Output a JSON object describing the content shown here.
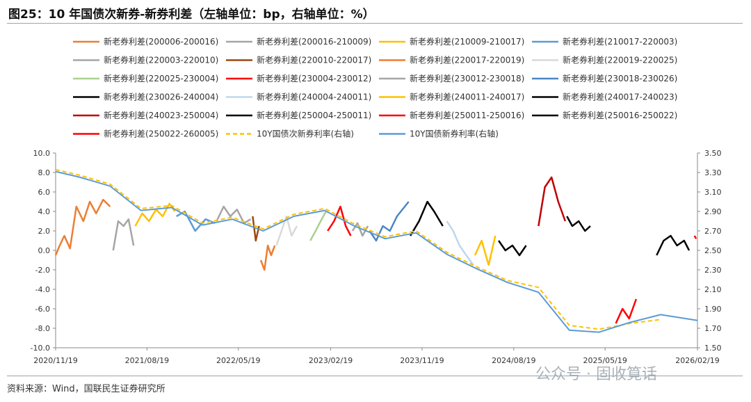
{
  "title": "图25：10 年国债次新券-新券利差（左轴单位：bp，右轴单位：%）",
  "source": "资料来源：Wind，国联民生证券研究所",
  "watermark": "公众号 · 固收筧话",
  "chart_data": {
    "type": "line",
    "xlabel": "",
    "ylabel_left": "",
    "ylabel_right": "",
    "ylim_left": [
      -10,
      10
    ],
    "ylim_right": [
      1.5,
      3.5
    ],
    "x_ticks": [
      "2020/11/19",
      "2021/08/19",
      "2022/05/19",
      "2023/02/19",
      "2023/11/19",
      "2024/08/19",
      "2025/05/19",
      "2026/02/19"
    ],
    "y_ticks_left": [
      "10.0",
      "8.0",
      "6.0",
      "4.0",
      "2.0",
      "0.0",
      "-2.0",
      "-4.0",
      "-6.0",
      "-8.0",
      "-10.0"
    ],
    "y_ticks_right": [
      "3.50",
      "3.30",
      "3.10",
      "2.90",
      "2.70",
      "2.50",
      "2.30",
      "2.10",
      "1.90",
      "1.70",
      "1.50"
    ],
    "grid": false,
    "legend_position": "top",
    "series": [
      {
        "name": "新老券利差(200006-200016)",
        "color": "#ed7d31",
        "style": "solid",
        "axis": "left",
        "x": [
          "2020/11/19",
          "2020/12/01",
          "2020/12/15",
          "2021/01/01",
          "2021/01/20",
          "2021/02/10",
          "2021/03/01",
          "2021/03/20",
          "2021/04/10",
          "2021/05/01"
        ],
        "y": [
          -0.5,
          0.5,
          1.5,
          0.2,
          4.5,
          3.0,
          5.0,
          3.8,
          5.2,
          4.5
        ]
      },
      {
        "name": "新老券利差(200016-210009)",
        "color": "#a5a5a5",
        "style": "solid",
        "axis": "left",
        "x": [
          "2021/05/10",
          "2021/05/25",
          "2021/06/10",
          "2021/06/25",
          "2021/07/10"
        ],
        "y": [
          0.0,
          3.0,
          2.5,
          3.2,
          0.5
        ]
      },
      {
        "name": "新老券利差(210009-210017)",
        "color": "#ffc000",
        "style": "solid",
        "axis": "left",
        "x": [
          "2021/07/15",
          "2021/08/05",
          "2021/08/25",
          "2021/09/15",
          "2021/10/05",
          "2021/10/25",
          "2021/11/10"
        ],
        "y": [
          2.5,
          3.8,
          3.0,
          4.2,
          3.5,
          4.8,
          4.0
        ]
      },
      {
        "name": "新老券利差(210017-220003)",
        "color": "#5b9bd5",
        "style": "solid",
        "axis": "left",
        "x": [
          "2021/11/15",
          "2021/12/10",
          "2022/01/10",
          "2022/02/10",
          "2022/03/10"
        ],
        "y": [
          3.5,
          4.0,
          2.0,
          3.2,
          2.8
        ]
      },
      {
        "name": "新老券利差(220003-220010)",
        "color": "#a5a5a5",
        "style": "solid",
        "axis": "left",
        "x": [
          "2022/03/15",
          "2022/04/05",
          "2022/04/25",
          "2022/05/15",
          "2022/06/05",
          "2022/06/25"
        ],
        "y": [
          3.0,
          4.5,
          3.5,
          4.2,
          2.8,
          3.2
        ]
      },
      {
        "name": "新老券利差(220010-220017)",
        "color": "#9e480e",
        "style": "solid",
        "axis": "left",
        "x": [
          "2022/07/01",
          "2022/07/10",
          "2022/07/20"
        ],
        "y": [
          3.5,
          1.0,
          2.5
        ]
      },
      {
        "name": "新老券利差(220017-220019)",
        "color": "#ed7d31",
        "style": "solid",
        "axis": "left",
        "x": [
          "2022/07/25",
          "2022/08/05",
          "2022/08/15",
          "2022/08/25",
          "2022/09/05"
        ],
        "y": [
          -1.0,
          -2.0,
          0.5,
          -0.5,
          0.5
        ]
      },
      {
        "name": "新老券利差(220019-220025)",
        "color": "#d9d9d9",
        "style": "solid",
        "axis": "left",
        "x": [
          "2022/09/10",
          "2022/09/25",
          "2022/10/10",
          "2022/10/25",
          "2022/11/10"
        ],
        "y": [
          0.5,
          2.0,
          3.5,
          1.5,
          2.5
        ]
      },
      {
        "name": "新老券利差(220025-230004)",
        "color": "#a9d18e",
        "style": "solid",
        "axis": "left",
        "x": [
          "2022/12/20",
          "2023/01/05",
          "2023/01/20",
          "2023/02/05"
        ],
        "y": [
          1.0,
          2.0,
          3.0,
          4.0
        ]
      },
      {
        "name": "新老券利差(230004-230012)",
        "color": "#ff0000",
        "style": "solid",
        "axis": "left",
        "x": [
          "2023/02/10",
          "2023/03/01",
          "2023/03/20",
          "2023/04/05",
          "2023/04/20"
        ],
        "y": [
          2.0,
          3.0,
          4.5,
          2.5,
          1.5
        ]
      },
      {
        "name": "新老券利差(230012-230018)",
        "color": "#a5a5a5",
        "style": "solid",
        "axis": "left",
        "x": [
          "2023/04/25",
          "2023/05/10",
          "2023/05/25",
          "2023/06/10"
        ],
        "y": [
          2.0,
          2.8,
          1.5,
          2.5
        ]
      },
      {
        "name": "新老券利差(230018-230026)",
        "color": "#4a86c5",
        "style": "solid",
        "axis": "left",
        "x": [
          "2023/06/15",
          "2023/07/05",
          "2023/07/25",
          "2023/08/15",
          "2023/09/05",
          "2023/10/10"
        ],
        "y": [
          2.0,
          1.0,
          2.5,
          2.0,
          3.5,
          5.0
        ]
      },
      {
        "name": "新老券利差(230026-240004)",
        "color": "#000000",
        "style": "solid",
        "axis": "left",
        "x": [
          "2023/10/15",
          "2023/11/10",
          "2023/12/05",
          "2023/12/25",
          "2024/01/20"
        ],
        "y": [
          1.5,
          3.0,
          5.0,
          4.0,
          2.5
        ]
      },
      {
        "name": "新老券利差(240004-240011)",
        "color": "#bdd7ee",
        "style": "solid",
        "axis": "left",
        "x": [
          "2024/02/01",
          "2024/02/20",
          "2024/03/10",
          "2024/03/30",
          "2024/04/20"
        ],
        "y": [
          3.0,
          2.0,
          0.5,
          -0.5,
          -1.5
        ]
      },
      {
        "name": "新老券利差(240011-240017)",
        "color": "#ffc000",
        "style": "solid",
        "axis": "left",
        "x": [
          "2024/04/25",
          "2024/05/15",
          "2024/06/05",
          "2024/06/25"
        ],
        "y": [
          -0.5,
          1.0,
          -1.5,
          1.5
        ]
      },
      {
        "name": "新老券利差(240017-240023)",
        "color": "#000000",
        "style": "solid",
        "axis": "left",
        "x": [
          "2024/07/05",
          "2024/07/25",
          "2024/08/15",
          "2024/09/05",
          "2024/09/25"
        ],
        "y": [
          1.0,
          0.0,
          0.5,
          -0.5,
          0.5
        ]
      },
      {
        "name": "新老券利差(240023-250004)",
        "color": "#c00000",
        "style": "solid",
        "axis": "left",
        "x": [
          "2024/11/01",
          "2024/11/20",
          "2024/12/10",
          "2024/12/30",
          "2025/01/20"
        ],
        "y": [
          2.5,
          6.5,
          7.5,
          5.0,
          3.0
        ]
      },
      {
        "name": "新老券利差(250004-250011)",
        "color": "#000000",
        "style": "solid",
        "axis": "left",
        "x": [
          "2025/01/25",
          "2025/02/10",
          "2025/03/01",
          "2025/03/20",
          "2025/04/05"
        ],
        "y": [
          3.5,
          2.5,
          3.0,
          2.0,
          2.5
        ]
      },
      {
        "name": "新老券利差(250011-250016)",
        "color": "#ff0000",
        "style": "solid",
        "axis": "left",
        "x": [
          "2025/06/20",
          "2025/07/10",
          "2025/07/30",
          "2025/08/20"
        ],
        "y": [
          -7.5,
          -6.0,
          -7.0,
          -5.0
        ]
      },
      {
        "name": "新老券利差(250016-250022)",
        "color": "#000000",
        "style": "solid",
        "axis": "left",
        "x": [
          "2025/10/20",
          "2025/11/10",
          "2025/12/01",
          "2025/12/20",
          "2026/01/10",
          "2026/01/25"
        ],
        "y": [
          -0.5,
          1.0,
          1.5,
          0.5,
          1.0,
          0.0
        ]
      },
      {
        "name": "新老券利差(250022-260005)",
        "color": "#ff0000",
        "style": "solid",
        "axis": "left",
        "x": [
          "2026/02/10",
          "2026/02/15"
        ],
        "y": [
          1.5,
          1.2
        ]
      },
      {
        "name": "10Y国债次新券利率(右轴)",
        "color": "#ffc000",
        "style": "dashed",
        "axis": "right",
        "x": [
          "2020/11/19",
          "2021/02/01",
          "2021/05/01",
          "2021/08/01",
          "2021/11/01",
          "2022/02/01",
          "2022/05/01",
          "2022/08/01",
          "2022/11/01",
          "2023/02/01",
          "2023/05/01",
          "2023/08/01",
          "2023/11/01",
          "2024/02/01",
          "2024/05/01",
          "2024/08/01",
          "2024/11/01",
          "2025/02/01",
          "2025/05/01",
          "2025/08/01",
          "2025/11/01"
        ],
        "y": [
          3.33,
          3.27,
          3.18,
          2.93,
          2.96,
          2.78,
          2.84,
          2.72,
          2.87,
          2.93,
          2.77,
          2.64,
          2.7,
          2.48,
          2.33,
          2.19,
          2.12,
          1.73,
          1.69,
          1.75,
          1.79
        ]
      },
      {
        "name": "10Y国债新券利率(右轴)",
        "color": "#5b9bd5",
        "style": "solid",
        "axis": "right",
        "x": [
          "2020/11/19",
          "2021/02/01",
          "2021/05/01",
          "2021/08/01",
          "2021/11/01",
          "2022/02/01",
          "2022/05/01",
          "2022/08/01",
          "2022/11/01",
          "2023/02/01",
          "2023/05/01",
          "2023/08/01",
          "2023/11/01",
          "2024/02/01",
          "2024/05/01",
          "2024/08/01",
          "2024/11/01",
          "2025/02/01",
          "2025/05/01",
          "2025/08/01",
          "2025/11/01",
          "2026/02/19"
        ],
        "y": [
          3.31,
          3.25,
          3.16,
          2.91,
          2.94,
          2.76,
          2.82,
          2.7,
          2.85,
          2.91,
          2.75,
          2.62,
          2.68,
          2.46,
          2.31,
          2.17,
          2.07,
          1.68,
          1.66,
          1.76,
          1.84,
          1.78
        ]
      }
    ]
  }
}
